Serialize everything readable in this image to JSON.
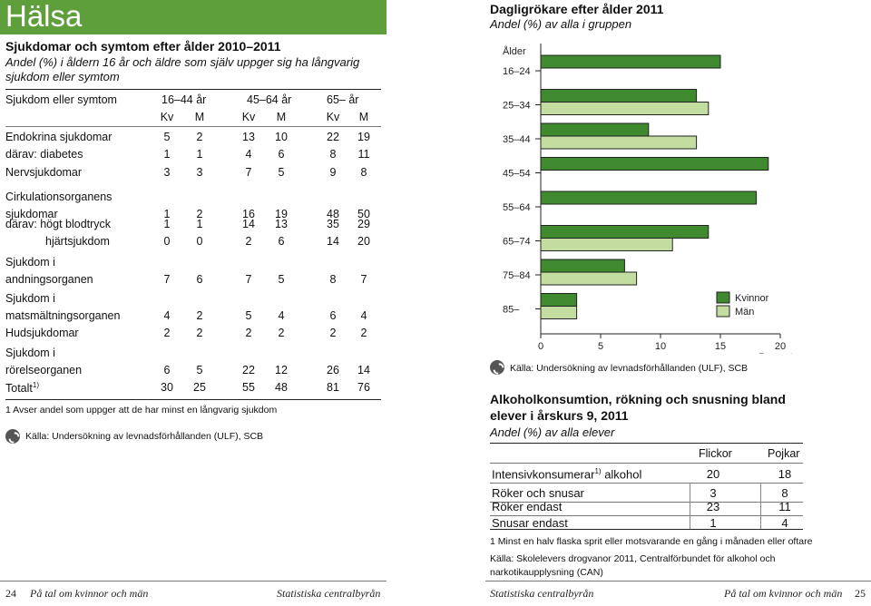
{
  "left": {
    "header": "Hälsa",
    "title": "Sjukdomar och symtom efter ålder 2010–2011",
    "subtitle": "Andel (%) i åldern 16 år och äldre som själv uppger sig ha långvarig sjukdom eller symtom",
    "table": {
      "col_header": "Sjukdom eller symtom",
      "groups": [
        "16–44 år",
        "45–64 år",
        "65– år"
      ],
      "sub": [
        "Kv",
        "M",
        "Kv",
        "M",
        "Kv",
        "M"
      ],
      "rows": [
        {
          "lines": [
            "Endokrina sjukdomar"
          ],
          "values": [
            "5",
            "2",
            "13",
            "10",
            "22",
            "19"
          ]
        },
        {
          "lines": [
            "därav: diabetes"
          ],
          "values": [
            "1",
            "1",
            "4",
            "6",
            "8",
            "11"
          ]
        },
        {
          "lines": [
            "Nervsjukdomar"
          ],
          "values": [
            "3",
            "3",
            "7",
            "5",
            "9",
            "8"
          ]
        },
        {
          "lines": [
            "Cirkulationsorganens",
            "sjukdomar"
          ],
          "values": [
            "1",
            "2",
            "16",
            "19",
            "48",
            "50"
          ]
        },
        {
          "lines": [
            "därav: högt blodtryck"
          ],
          "values": [
            "1",
            "1",
            "14",
            "13",
            "35",
            "29"
          ]
        },
        {
          "lines": [
            "hjärtsjukdom"
          ],
          "values": [
            "0",
            "0",
            "2",
            "6",
            "14",
            "20"
          ]
        },
        {
          "lines": [
            "Sjukdom i",
            "andningsorganen"
          ],
          "values": [
            "7",
            "6",
            "7",
            "5",
            "8",
            "7"
          ]
        },
        {
          "lines": [
            "Sjukdom i",
            "matsmältningsorganen"
          ],
          "values": [
            "4",
            "2",
            "5",
            "4",
            "6",
            "4"
          ]
        },
        {
          "lines": [
            "Hudsjukdomar"
          ],
          "values": [
            "2",
            "2",
            "2",
            "2",
            "2",
            "2"
          ]
        },
        {
          "lines": [
            "Sjukdom i",
            "rörelseorganen"
          ],
          "values": [
            "6",
            "5",
            "22",
            "12",
            "26",
            "14"
          ]
        },
        {
          "lines": [
            "Totalt"
          ],
          "sup": "1)",
          "values": [
            "30",
            "25",
            "55",
            "48",
            "81",
            "76"
          ]
        }
      ]
    },
    "footnote": "1   Avser andel som uppger att de har minst en långvarig sjukdom",
    "source": "Källa: Undersökning av levnadsförhållanden (ULF), SCB",
    "page_number": "24",
    "footer_title": "På tal om kvinnor och män",
    "footer_publisher": "Statistiska centralbyrån"
  },
  "right": {
    "chart_title": "Dagligrökare efter ålder 2011",
    "chart_subtitle": "Andel (%) av alla i gruppen",
    "chart_source": "Källa: Undersökning av levnadsförhållanden (ULF), SCB",
    "table_title": "Alkoholkonsumtion, rökning och snusning bland elever i årskurs 9, 2011",
    "table_subtitle": "Andel (%) av alla elever",
    "table": {
      "headers": [
        "Flickor",
        "Pojkar"
      ],
      "rows": [
        {
          "label": "Intensivkonsumerar",
          "sup": "1)",
          "label_tail": " alkohol",
          "values": [
            "20",
            "18"
          ]
        },
        {
          "label": "Röker och snusar",
          "values": [
            "3",
            "8"
          ]
        },
        {
          "label": "Röker endast",
          "values": [
            "23",
            "11"
          ]
        },
        {
          "label": "Snusar endast",
          "values": [
            "1",
            "4"
          ]
        }
      ]
    },
    "footnote": "1   Minst en halv flaska sprit eller motsvarande en gång i månaden eller oftare",
    "source": "Källa: Skolelevers drogvanor 2011, Centralförbundet för alkohol och narkotikaupplysning (CAN)",
    "footer_publisher": "Statistiska centralbyrån",
    "footer_title": "På tal om kvinnor och män",
    "page_number": "25"
  },
  "colors": {
    "header_green": "#5f9f3b",
    "women": "#3f8a2f",
    "men": "#c3dca0"
  },
  "chart_data": {
    "type": "bar",
    "orientation": "horizontal",
    "title": "Dagligrökare efter ålder 2011",
    "subtitle": "Andel (%) av alla i gruppen",
    "ylabel": "Ålder",
    "xlabel": "Procent",
    "categories": [
      "16–24",
      "25–34",
      "35–44",
      "45–54",
      "55–64",
      "65–74",
      "75–84",
      "85–"
    ],
    "series": [
      {
        "name": "Kvinnor",
        "values": [
          15,
          13,
          9,
          19,
          18,
          14,
          7,
          3
        ]
      },
      {
        "name": "Män",
        "values": [
          0,
          14,
          13,
          0,
          0,
          11,
          8,
          3
        ]
      }
    ],
    "xlim": [
      0,
      20
    ],
    "xticks": [
      "0",
      "5",
      "10",
      "15",
      "20"
    ],
    "legend": "bottom-right",
    "grid": false
  }
}
